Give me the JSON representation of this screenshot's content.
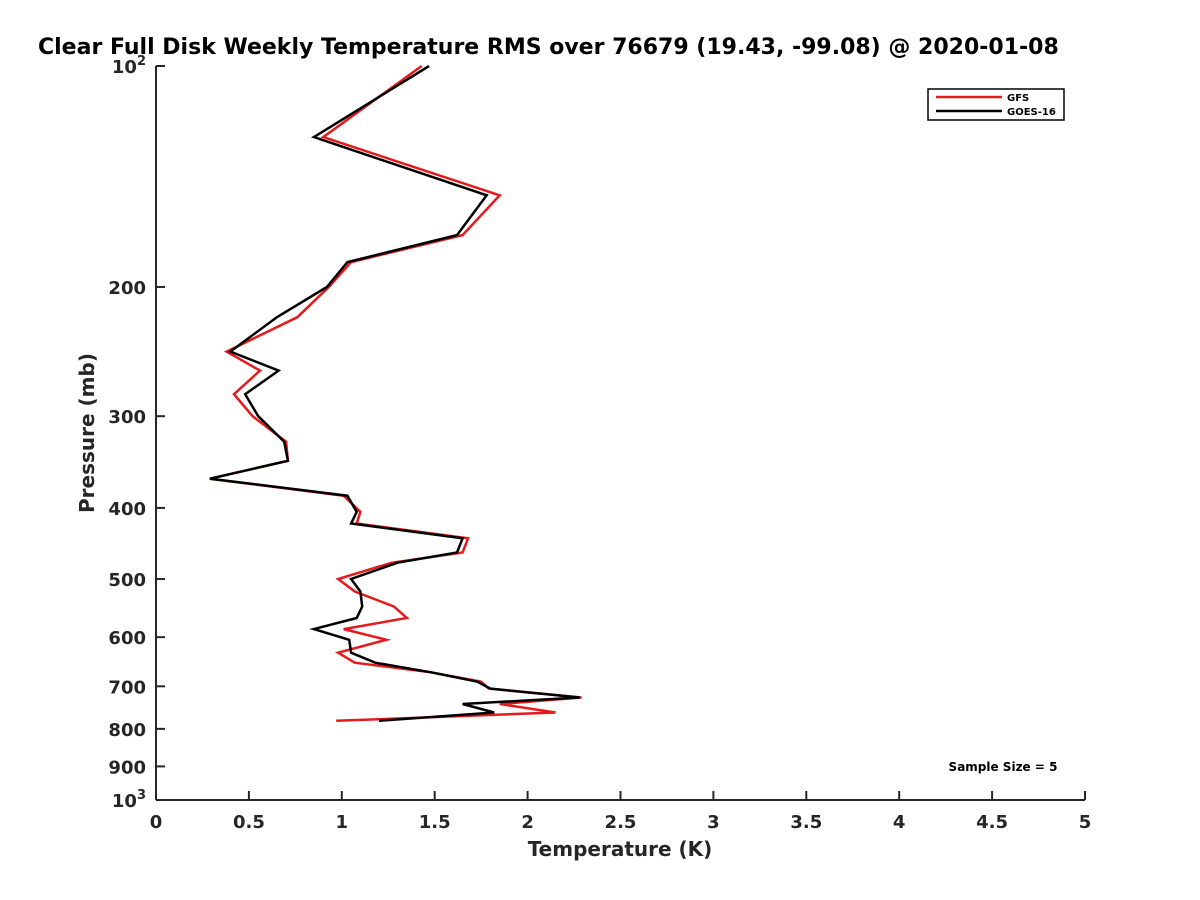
{
  "chart_data": {
    "type": "line",
    "title": "Clear Full Disk Weekly Temperature RMS over 76679 (19.43, -99.08) @ 2020-01-08",
    "xlabel": "Temperature (K)",
    "ylabel": "Pressure (mb)",
    "xlim": [
      0,
      5
    ],
    "ylim": [
      100,
      1000
    ],
    "y_scale": "log",
    "y_reversed": true,
    "x_ticks": [
      "0",
      "0.5",
      "1",
      "1.5",
      "2",
      "2.5",
      "3",
      "3.5",
      "4",
      "4.5",
      "5"
    ],
    "y_ticks": [
      {
        "value": 100,
        "base": "10",
        "exp": "2"
      },
      {
        "value": 200,
        "label": "200"
      },
      {
        "value": 300,
        "label": "300"
      },
      {
        "value": 400,
        "label": "400"
      },
      {
        "value": 500,
        "label": "500"
      },
      {
        "value": 600,
        "label": "600"
      },
      {
        "value": 700,
        "label": "700"
      },
      {
        "value": 800,
        "label": "800"
      },
      {
        "value": 900,
        "label": "900"
      },
      {
        "value": 1000,
        "base": "10",
        "exp": "3"
      }
    ],
    "grid": false,
    "legend_position": "top-right",
    "annotation": "Sample Size = 5",
    "series": [
      {
        "name": "GFS",
        "color": "#e41a1c",
        "points": [
          {
            "x": 1.43,
            "y": 100
          },
          {
            "x": 0.9,
            "y": 125
          },
          {
            "x": 1.85,
            "y": 150
          },
          {
            "x": 1.65,
            "y": 170
          },
          {
            "x": 1.05,
            "y": 185
          },
          {
            "x": 0.93,
            "y": 200
          },
          {
            "x": 0.76,
            "y": 220
          },
          {
            "x": 0.38,
            "y": 245
          },
          {
            "x": 0.56,
            "y": 260
          },
          {
            "x": 0.42,
            "y": 280
          },
          {
            "x": 0.52,
            "y": 300
          },
          {
            "x": 0.7,
            "y": 325
          },
          {
            "x": 0.71,
            "y": 345
          },
          {
            "x": 0.29,
            "y": 365
          },
          {
            "x": 1.01,
            "y": 385
          },
          {
            "x": 1.1,
            "y": 405
          },
          {
            "x": 1.08,
            "y": 420
          },
          {
            "x": 1.68,
            "y": 440
          },
          {
            "x": 1.65,
            "y": 460
          },
          {
            "x": 1.27,
            "y": 475
          },
          {
            "x": 0.98,
            "y": 500
          },
          {
            "x": 1.07,
            "y": 520
          },
          {
            "x": 1.28,
            "y": 545
          },
          {
            "x": 1.35,
            "y": 565
          },
          {
            "x": 1.01,
            "y": 585
          },
          {
            "x": 1.24,
            "y": 605
          },
          {
            "x": 0.98,
            "y": 630
          },
          {
            "x": 1.07,
            "y": 650
          },
          {
            "x": 1.48,
            "y": 670
          },
          {
            "x": 1.75,
            "y": 690
          },
          {
            "x": 1.79,
            "y": 705
          },
          {
            "x": 2.29,
            "y": 725
          },
          {
            "x": 1.85,
            "y": 740
          },
          {
            "x": 2.15,
            "y": 760
          },
          {
            "x": 0.97,
            "y": 780
          }
        ]
      },
      {
        "name": "GOES-16",
        "color": "#000000",
        "points": [
          {
            "x": 1.47,
            "y": 100
          },
          {
            "x": 0.85,
            "y": 125
          },
          {
            "x": 1.78,
            "y": 150
          },
          {
            "x": 1.62,
            "y": 170
          },
          {
            "x": 1.03,
            "y": 185
          },
          {
            "x": 0.92,
            "y": 200
          },
          {
            "x": 0.65,
            "y": 220
          },
          {
            "x": 0.4,
            "y": 245
          },
          {
            "x": 0.66,
            "y": 260
          },
          {
            "x": 0.48,
            "y": 280
          },
          {
            "x": 0.55,
            "y": 300
          },
          {
            "x": 0.69,
            "y": 325
          },
          {
            "x": 0.71,
            "y": 345
          },
          {
            "x": 0.29,
            "y": 365
          },
          {
            "x": 1.03,
            "y": 385
          },
          {
            "x": 1.08,
            "y": 405
          },
          {
            "x": 1.05,
            "y": 420
          },
          {
            "x": 1.65,
            "y": 440
          },
          {
            "x": 1.62,
            "y": 460
          },
          {
            "x": 1.3,
            "y": 475
          },
          {
            "x": 1.05,
            "y": 500
          },
          {
            "x": 1.1,
            "y": 520
          },
          {
            "x": 1.11,
            "y": 545
          },
          {
            "x": 1.08,
            "y": 565
          },
          {
            "x": 0.85,
            "y": 585
          },
          {
            "x": 1.04,
            "y": 605
          },
          {
            "x": 1.05,
            "y": 630
          },
          {
            "x": 1.18,
            "y": 650
          },
          {
            "x": 1.48,
            "y": 670
          },
          {
            "x": 1.73,
            "y": 690
          },
          {
            "x": 1.8,
            "y": 705
          },
          {
            "x": 2.28,
            "y": 725
          },
          {
            "x": 1.65,
            "y": 740
          },
          {
            "x": 1.82,
            "y": 760
          },
          {
            "x": 1.2,
            "y": 780
          }
        ]
      }
    ]
  }
}
